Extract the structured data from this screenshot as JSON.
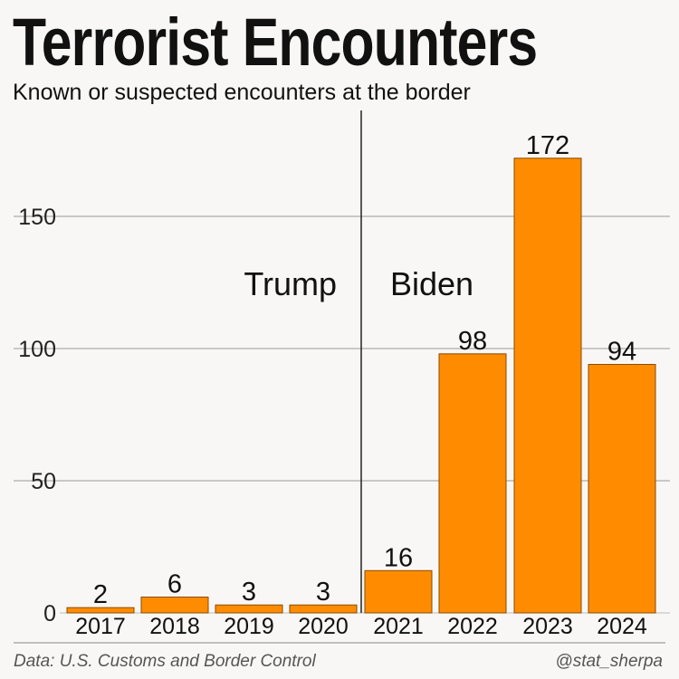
{
  "title": "Terrorist Encounters",
  "subtitle": "Known or suspected encounters at the border",
  "footer": {
    "source": "Data: U.S. Customs and Border Control",
    "handle": "@stat_sherpa"
  },
  "colors": {
    "bar": "#ff8c00",
    "bar_stroke": "#8a4a00",
    "grid": "#9a9a9a"
  },
  "chart_data": {
    "type": "bar",
    "title": "Terrorist Encounters",
    "subtitle": "Known or suspected encounters at the border",
    "categories": [
      "2017",
      "2018",
      "2019",
      "2020",
      "2021",
      "2022",
      "2023",
      "2024"
    ],
    "values": [
      2,
      6,
      3,
      3,
      16,
      98,
      172,
      94
    ],
    "ylim": [
      0,
      190
    ],
    "yticks": [
      0,
      50,
      100,
      150
    ],
    "grid": true,
    "annotations": [
      {
        "text": "Trump",
        "period": "2017-2020"
      },
      {
        "text": "Biden",
        "period": "2021-2024"
      }
    ],
    "divider_after": "2020"
  }
}
